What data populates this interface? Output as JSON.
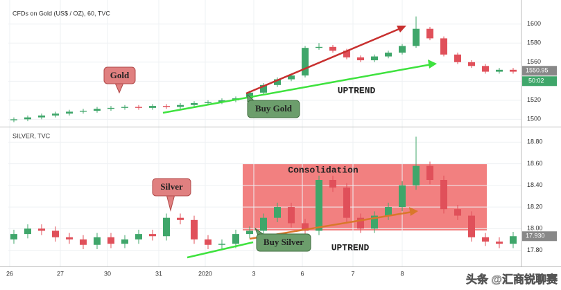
{
  "chart_data": [
    {
      "type": "candlestick",
      "title": "CFDs on Gold (US$ / OZ), 60, TVC",
      "up_color": "#3fa66a",
      "down_color": "#e0505a",
      "x": [
        0,
        1,
        2,
        3,
        4,
        5,
        6,
        7,
        8,
        9,
        10,
        11,
        12,
        13,
        14,
        15,
        16,
        17,
        18,
        19,
        20,
        21,
        22,
        23,
        24,
        25,
        26,
        27,
        28,
        29,
        30,
        31,
        32,
        33,
        34,
        35,
        36
      ],
      "open": [
        1499,
        1500,
        1502,
        1504,
        1506,
        1508,
        1509,
        1511,
        1512,
        1513,
        1512,
        1514,
        1513,
        1515,
        1517,
        1518,
        1520,
        1522,
        1528,
        1536,
        1542,
        1546,
        1575,
        1576,
        1572,
        1565,
        1562,
        1566,
        1570,
        1577,
        1595,
        1585,
        1568,
        1560,
        1556,
        1550,
        1552
      ],
      "high": [
        1502,
        1504,
        1506,
        1508,
        1510,
        1511,
        1513,
        1514,
        1515,
        1515,
        1516,
        1516,
        1517,
        1519,
        1520,
        1522,
        1524,
        1530,
        1538,
        1544,
        1548,
        1577,
        1580,
        1578,
        1574,
        1567,
        1568,
        1572,
        1579,
        1608,
        1597,
        1587,
        1570,
        1562,
        1558,
        1554,
        1554
      ],
      "low": [
        1497,
        1498,
        1500,
        1502,
        1504,
        1506,
        1507,
        1509,
        1510,
        1510,
        1510,
        1511,
        1511,
        1513,
        1515,
        1516,
        1518,
        1520,
        1526,
        1534,
        1540,
        1544,
        1573,
        1570,
        1563,
        1560,
        1560,
        1564,
        1568,
        1575,
        1583,
        1566,
        1558,
        1554,
        1548,
        1548,
        1548
      ],
      "close": [
        1500,
        1502,
        1504,
        1506,
        1508,
        1509,
        1511,
        1512,
        1513,
        1512,
        1514,
        1513,
        1515,
        1517,
        1518,
        1520,
        1522,
        1528,
        1536,
        1542,
        1546,
        1575,
        1576,
        1572,
        1565,
        1562,
        1566,
        1570,
        1577,
        1595,
        1585,
        1568,
        1560,
        1556,
        1550,
        1552,
        1550
      ],
      "xlim": [
        -0.4,
        36.6
      ],
      "ylim": [
        1493,
        1618
      ],
      "yticks": [
        1500,
        1520,
        1540,
        1560,
        1580,
        1600
      ],
      "last_price": 1550.95,
      "countdown": "50:02",
      "annotations": {
        "callout": "Gold",
        "buy": "Buy Gold",
        "trend": "UPTREND"
      }
    },
    {
      "type": "candlestick",
      "title": "SILVER, TVC",
      "up_color": "#3fa66a",
      "down_color": "#e0505a",
      "x": [
        0,
        1,
        2,
        3,
        4,
        5,
        6,
        7,
        8,
        9,
        10,
        11,
        12,
        13,
        14,
        15,
        16,
        17,
        18,
        19,
        20,
        21,
        22,
        23,
        24,
        25,
        26,
        27,
        28,
        29,
        30,
        31,
        32,
        33,
        34,
        35,
        36
      ],
      "open": [
        17.9,
        17.95,
        18.0,
        17.98,
        17.92,
        17.9,
        17.85,
        17.92,
        17.86,
        17.9,
        17.95,
        17.93,
        18.1,
        18.08,
        17.9,
        17.85,
        17.86,
        17.95,
        17.98,
        18.1,
        18.2,
        18.05,
        17.98,
        18.45,
        18.38,
        18.1,
        18.0,
        18.12,
        18.2,
        18.4,
        18.58,
        18.45,
        18.18,
        18.12,
        17.92,
        17.88,
        17.86
      ],
      "high": [
        17.99,
        18.04,
        18.04,
        18.02,
        17.96,
        17.94,
        17.96,
        17.96,
        17.94,
        17.99,
        17.99,
        18.14,
        18.14,
        18.12,
        17.94,
        17.9,
        17.99,
        18.02,
        18.14,
        18.24,
        18.24,
        18.09,
        18.49,
        18.49,
        18.42,
        18.14,
        18.16,
        18.24,
        18.44,
        18.85,
        18.62,
        18.49,
        18.22,
        18.16,
        17.96,
        17.92,
        17.97
      ],
      "low": [
        17.86,
        17.91,
        17.94,
        17.88,
        17.86,
        17.81,
        17.81,
        17.82,
        17.82,
        17.86,
        17.89,
        17.89,
        18.04,
        17.86,
        17.81,
        17.81,
        17.82,
        17.91,
        17.94,
        18.06,
        18.01,
        17.94,
        17.94,
        18.34,
        18.06,
        17.96,
        17.96,
        18.08,
        18.16,
        18.36,
        18.41,
        18.14,
        18.08,
        17.88,
        17.84,
        17.82,
        17.82
      ],
      "close": [
        17.95,
        18.0,
        17.98,
        17.92,
        17.9,
        17.85,
        17.92,
        17.86,
        17.9,
        17.95,
        17.93,
        18.1,
        18.08,
        17.9,
        17.85,
        17.86,
        17.95,
        17.98,
        18.1,
        18.2,
        18.05,
        17.98,
        18.45,
        18.38,
        18.1,
        18.0,
        18.12,
        18.2,
        18.4,
        18.58,
        18.45,
        18.18,
        18.12,
        17.92,
        17.88,
        17.86,
        17.93
      ],
      "xlim": [
        -0.4,
        36.6
      ],
      "ylim": [
        17.65,
        18.93
      ],
      "yticks": [
        {
          "value": 17.8,
          "label": "17.80"
        },
        {
          "value": 18,
          "label": "18.00"
        },
        {
          "value": 18.2,
          "label": "18.20"
        },
        {
          "value": 18.4,
          "label": "18.40"
        },
        {
          "value": 18.6,
          "label": "18.60"
        },
        {
          "value": 18.8,
          "label": "18.80"
        }
      ],
      "xticks": [
        {
          "value": -0.3,
          "label": "26"
        },
        {
          "value": 3.35,
          "label": "27"
        },
        {
          "value": 6.75,
          "label": "30"
        },
        {
          "value": 10.45,
          "label": "31"
        },
        {
          "value": 13.8,
          "label": "2020"
        },
        {
          "value": 17.3,
          "label": "3"
        },
        {
          "value": 20.8,
          "label": "6"
        },
        {
          "value": 24.45,
          "label": "7"
        },
        {
          "value": 28,
          "label": "8"
        }
      ],
      "last_price": {
        "value": 17.93,
        "label": "17.930"
      },
      "annotations": {
        "zone": "Consolidation",
        "callout": "Silver",
        "buy": "Buy Silver",
        "trend": "UPTREND"
      }
    }
  ],
  "watermark": "头条 @汇商锐聊赛"
}
